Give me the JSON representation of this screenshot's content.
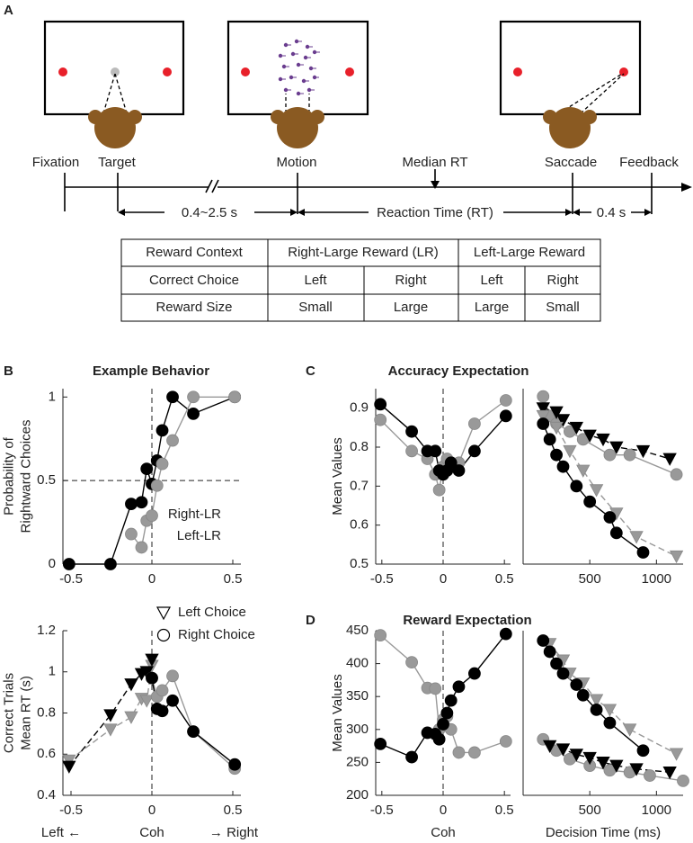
{
  "panel_a": {
    "label": "A",
    "events": [
      "Fixation",
      "Target",
      "Motion",
      "Median RT",
      "Saccade",
      "Feedback"
    ],
    "intervals": [
      "0.4~2.5 s",
      "Reaction Time (RT)",
      "0.4 s"
    ],
    "table": {
      "rows": [
        [
          "Reward Context",
          "Right-Large Reward (LR)",
          "Left-Large Reward"
        ],
        [
          "Correct Choice",
          "Left",
          "Right",
          "Left",
          "Right"
        ],
        [
          "Reward Size",
          "Small",
          "Large",
          "Large",
          "Small"
        ]
      ]
    }
  },
  "chart_data": [
    {
      "type": "line",
      "panel": "B",
      "title": "Example Behavior",
      "ylabel": [
        "Probability of",
        "Rightward Choices"
      ],
      "x": [
        -0.512,
        -0.256,
        -0.128,
        -0.064,
        -0.032,
        0,
        0.032,
        0.064,
        0.128,
        0.256,
        0.512
      ],
      "xlim": [
        -0.55,
        0.55
      ],
      "ylim": [
        0,
        1.05
      ],
      "xticks": [
        -0.5,
        0,
        0.5
      ],
      "yticks": [
        0,
        0.5,
        1
      ],
      "vline": 0,
      "hline": 0.5,
      "series": [
        {
          "name": "Right-LR",
          "color": "#000000",
          "marker": "circle",
          "values": [
            0,
            0,
            0.36,
            0.37,
            0.57,
            0.48,
            0.62,
            0.8,
            1,
            0.9,
            1
          ]
        },
        {
          "name": "Left-LR",
          "color": "#999999",
          "marker": "circle",
          "values": [
            null,
            null,
            0.18,
            0.1,
            0.26,
            0.29,
            0.47,
            0.6,
            0.74,
            1,
            1
          ]
        }
      ]
    },
    {
      "type": "line",
      "ylabel": [
        "Correct Trials",
        "Mean RT (s)"
      ],
      "xlabel": "Coh",
      "xlabel_left": "Left ←",
      "xlabel_right": "→ Right",
      "xlim": [
        -0.55,
        0.55
      ],
      "ylim": [
        0.4,
        1.2
      ],
      "xticks": [
        -0.5,
        0,
        0.5
      ],
      "yticks": [
        0.4,
        0.6,
        0.8,
        1,
        1.2
      ],
      "vline": 0,
      "legend": [
        {
          "label": "Left Choice",
          "marker": "triangle"
        },
        {
          "label": "Right Choice",
          "marker": "circle"
        }
      ],
      "series": [
        {
          "color": "#999999",
          "marker": "triangle",
          "dashed": true,
          "x": [
            -0.512,
            -0.256,
            -0.128,
            -0.064,
            -0.032,
            0
          ],
          "values": [
            0.57,
            0.72,
            0.78,
            0.87,
            0.86,
            1.03
          ]
        },
        {
          "color": "#000000",
          "marker": "triangle",
          "dashed": true,
          "x": [
            -0.512,
            -0.256,
            -0.128,
            -0.064,
            -0.032,
            0
          ],
          "values": [
            0.54,
            0.79,
            0.94,
            0.99,
            1.0,
            1.06
          ]
        },
        {
          "color": "#999999",
          "marker": "circle",
          "x": [
            0,
            0.032,
            0.064,
            0.128,
            0.256,
            0.512
          ],
          "values": [
            0.97,
            0.88,
            0.91,
            0.98,
            0.71,
            0.53
          ]
        },
        {
          "color": "#000000",
          "marker": "circle",
          "x": [
            0,
            0.032,
            0.064,
            0.128,
            0.256,
            0.512
          ],
          "values": [
            0.97,
            0.82,
            0.81,
            0.86,
            0.71,
            0.55
          ]
        }
      ]
    },
    {
      "type": "line",
      "panel": "C",
      "title": "Accuracy Expectation",
      "ylabel": [
        "Mean Values"
      ],
      "x": [
        -0.512,
        -0.256,
        -0.128,
        -0.064,
        -0.032,
        0,
        0.032,
        0.064,
        0.128,
        0.256,
        0.512
      ],
      "xlim": [
        -0.55,
        0.55
      ],
      "ylim": [
        0.5,
        0.95
      ],
      "xticks": [
        -0.5,
        0,
        0.5
      ],
      "yticks": [
        0.5,
        0.6,
        0.7,
        0.8,
        0.9
      ],
      "vline": 0,
      "series": [
        {
          "color": "#999999",
          "marker": "circle",
          "values": [
            0.87,
            0.79,
            0.77,
            0.73,
            0.69,
            0.75,
            0.77,
            0.76,
            0.76,
            0.86,
            0.92
          ]
        },
        {
          "color": "#000000",
          "marker": "circle",
          "values": [
            0.91,
            0.84,
            0.79,
            0.79,
            0.74,
            0.73,
            0.74,
            0.76,
            0.74,
            0.79,
            0.88
          ]
        }
      ]
    },
    {
      "type": "line",
      "xlim": [
        0,
        1200
      ],
      "ylim": [
        0.5,
        0.95
      ],
      "xticks": [
        500,
        1000
      ],
      "series": [
        {
          "color": "#999999",
          "marker": "circle",
          "x": [
            150,
            200,
            250,
            350,
            450,
            650,
            800,
            1150
          ],
          "values": [
            0.93,
            0.88,
            0.86,
            0.84,
            0.82,
            0.78,
            0.78,
            0.73
          ]
        },
        {
          "color": "#000000",
          "marker": "triangle",
          "dashed": true,
          "x": [
            150,
            250,
            300,
            400,
            500,
            600,
            700,
            900,
            1100
          ],
          "values": [
            0.9,
            0.89,
            0.87,
            0.85,
            0.83,
            0.82,
            0.8,
            0.79,
            0.77
          ]
        },
        {
          "color": "#999999",
          "marker": "triangle",
          "dashed": true,
          "x": [
            150,
            250,
            350,
            450,
            550,
            700,
            850,
            1150
          ],
          "values": [
            0.88,
            0.85,
            0.79,
            0.74,
            0.69,
            0.63,
            0.57,
            0.52
          ]
        },
        {
          "color": "#000000",
          "marker": "circle",
          "x": [
            150,
            200,
            250,
            300,
            400,
            500,
            650,
            700,
            900
          ],
          "values": [
            0.86,
            0.82,
            0.78,
            0.75,
            0.7,
            0.66,
            0.62,
            0.58,
            0.53
          ]
        }
      ]
    },
    {
      "type": "line",
      "panel": "D",
      "title": "Reward Expectation",
      "ylabel": [
        "Mean Values"
      ],
      "xlabel": "Coh",
      "x": [
        -0.512,
        -0.256,
        -0.128,
        -0.064,
        -0.032,
        0,
        0.032,
        0.064,
        0.128,
        0.256,
        0.512
      ],
      "xlim": [
        -0.55,
        0.55
      ],
      "ylim": [
        200,
        450
      ],
      "xticks": [
        -0.5,
        0,
        0.5
      ],
      "yticks": [
        200,
        250,
        300,
        350,
        400,
        450
      ],
      "vline": 0,
      "series": [
        {
          "color": "#999999",
          "marker": "circle",
          "values": [
            443,
            402,
            363,
            362,
            300,
            315,
            320,
            300,
            265,
            265,
            282
          ]
        },
        {
          "color": "#000000",
          "marker": "circle",
          "values": [
            278,
            258,
            295,
            293,
            285,
            308,
            325,
            344,
            365,
            385,
            445
          ]
        }
      ]
    },
    {
      "type": "line",
      "xlabel": "Decision Time (ms)",
      "xlim": [
        0,
        1200
      ],
      "ylim": [
        200,
        450
      ],
      "xticks": [
        500,
        1000
      ],
      "series": [
        {
          "color": "#999999",
          "marker": "triangle",
          "dashed": true,
          "x": [
            200,
            300,
            350,
            450,
            550,
            650,
            800,
            1150
          ],
          "values": [
            430,
            405,
            385,
            370,
            345,
            330,
            300,
            263
          ]
        },
        {
          "color": "#000000",
          "marker": "circle",
          "x": [
            150,
            200,
            250,
            300,
            400,
            450,
            550,
            650,
            900
          ],
          "values": [
            435,
            418,
            400,
            385,
            368,
            352,
            330,
            310,
            268
          ]
        },
        {
          "color": "#999999",
          "marker": "circle",
          "x": [
            150,
            250,
            350,
            500,
            650,
            800,
            950,
            1200
          ],
          "values": [
            285,
            268,
            255,
            245,
            238,
            235,
            230,
            222
          ]
        },
        {
          "color": "#000000",
          "marker": "triangle",
          "dashed": true,
          "x": [
            200,
            300,
            400,
            500,
            600,
            700,
            850,
            1100
          ],
          "values": [
            275,
            270,
            262,
            257,
            250,
            245,
            240,
            235
          ]
        }
      ]
    }
  ]
}
